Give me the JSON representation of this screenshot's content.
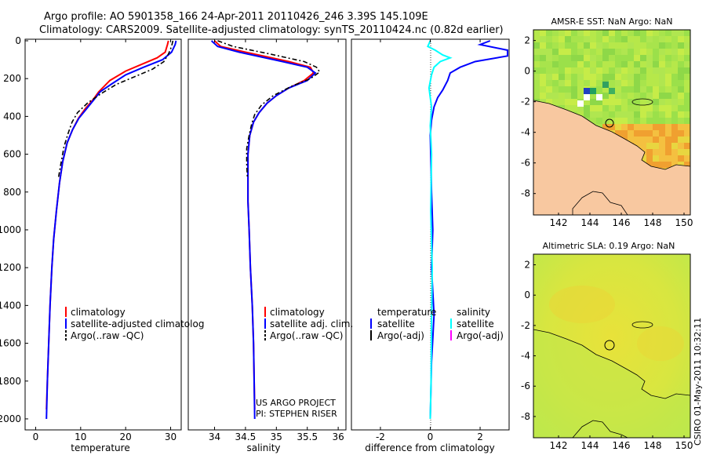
{
  "header": {
    "line1": "Argo profile: AO 5901358_166 24-Apr-2011 20110426_246 3.39S 145.109E",
    "line2": "Climatology: CARS2009. Satellite-adjusted climatology: synTS_20110424.nc (0.82d earlier)"
  },
  "credits": {
    "project": "US ARGO PROJECT",
    "pi": "PI: STEPHEN RISER"
  },
  "timestamp": "CSIRO 01-May-2011 10:32:11",
  "colors": {
    "clim": "#ff0000",
    "sat": "#0000ff",
    "argo": "#000000",
    "sal_sat": "#00ffff",
    "sal_argo": "#ff00ff",
    "land": "#f8c8a0"
  },
  "chart_data": [
    {
      "type": "line",
      "name": "temperature-profile",
      "xlabel": "temperature",
      "xlim": [
        -2,
        32
      ],
      "ylim": [
        2050,
        0
      ],
      "xticks": [
        0,
        10,
        20,
        30
      ],
      "yticks": [
        0,
        200,
        400,
        600,
        800,
        1000,
        1200,
        1400,
        1600,
        1800,
        2000
      ],
      "legend": [
        "climatology",
        "satellite-adjusted climatolog",
        "Argo(..raw -QC)"
      ],
      "series": [
        {
          "name": "climatology",
          "color": "#ff0000",
          "dash": "",
          "points": [
            [
              29.5,
              0
            ],
            [
              29.3,
              20
            ],
            [
              28.8,
              60
            ],
            [
              27,
              90
            ],
            [
              24,
              120
            ],
            [
              20,
              160
            ],
            [
              16.5,
              210
            ],
            [
              14,
              270
            ],
            [
              12.8,
              310
            ],
            [
              11,
              360
            ],
            [
              9.5,
              410
            ],
            [
              8.2,
              470
            ],
            [
              7,
              540
            ],
            [
              6,
              640
            ],
            [
              5.3,
              750
            ],
            [
              4.6,
              900
            ],
            [
              4.0,
              1050
            ],
            [
              3.6,
              1200
            ],
            [
              3.2,
              1400
            ],
            [
              2.9,
              1600
            ],
            [
              2.6,
              1800
            ],
            [
              2.4,
              1950
            ]
          ]
        },
        {
          "name": "satellite-adjusted climatology",
          "color": "#0000ff",
          "dash": "",
          "points": [
            [
              31.2,
              0
            ],
            [
              31,
              20
            ],
            [
              30.2,
              60
            ],
            [
              28.2,
              100
            ],
            [
              24,
              140
            ],
            [
              20,
              180
            ],
            [
              16.8,
              230
            ],
            [
              14.3,
              270
            ],
            [
              13,
              310
            ],
            [
              11.3,
              360
            ],
            [
              9.6,
              410
            ],
            [
              8.2,
              470
            ],
            [
              7,
              540
            ],
            [
              6,
              640
            ],
            [
              5.3,
              750
            ],
            [
              4.6,
              900
            ],
            [
              4.0,
              1050
            ],
            [
              3.6,
              1200
            ],
            [
              3.2,
              1400
            ],
            [
              2.9,
              1600
            ],
            [
              2.6,
              1800
            ],
            [
              2.4,
              2000
            ]
          ]
        },
        {
          "name": "Argo(..raw -QC)",
          "color": "#000000",
          "dash": "6,3,2,3",
          "points": [
            [
              30.5,
              0
            ],
            [
              30.2,
              30
            ],
            [
              29.5,
              70
            ],
            [
              28.5,
              110
            ],
            [
              26,
              150
            ],
            [
              22,
              190
            ],
            [
              18,
              230
            ],
            [
              14.5,
              280
            ],
            [
              11.5,
              330
            ],
            [
              9.3,
              380
            ],
            [
              8.1,
              430
            ],
            [
              7.2,
              490
            ],
            [
              6.3,
              560
            ],
            [
              5.6,
              650
            ],
            [
              5.1,
              720
            ]
          ]
        }
      ]
    },
    {
      "type": "line",
      "name": "salinity-profile",
      "xlabel": "salinity",
      "xlim": [
        33.6,
        36.1
      ],
      "ylim": [
        2050,
        0
      ],
      "xticks": [
        34,
        34.5,
        35,
        35.5,
        36
      ],
      "legend": [
        "climatology",
        "satellite adj. clim.",
        "Argo(..raw -QC)"
      ],
      "series": [
        {
          "name": "climatology",
          "color": "#ff0000",
          "dash": "",
          "points": [
            [
              34.0,
              0
            ],
            [
              34.1,
              30
            ],
            [
              34.5,
              60
            ],
            [
              35.2,
              110
            ],
            [
              35.55,
              140
            ],
            [
              35.6,
              170
            ],
            [
              35.45,
              210
            ],
            [
              35.2,
              250
            ],
            [
              35.0,
              290
            ],
            [
              34.85,
              330
            ],
            [
              34.72,
              380
            ],
            [
              34.63,
              430
            ],
            [
              34.57,
              500
            ],
            [
              34.54,
              600
            ],
            [
              34.54,
              700
            ],
            [
              34.54,
              850
            ],
            [
              34.56,
              1000
            ],
            [
              34.58,
              1200
            ],
            [
              34.61,
              1400
            ],
            [
              34.63,
              1600
            ],
            [
              34.64,
              1800
            ],
            [
              34.65,
              1950
            ]
          ]
        },
        {
          "name": "satellite adj. clim.",
          "color": "#0000ff",
          "dash": "",
          "points": [
            [
              33.95,
              0
            ],
            [
              34.05,
              30
            ],
            [
              34.4,
              60
            ],
            [
              35.1,
              110
            ],
            [
              35.5,
              140
            ],
            [
              35.63,
              170
            ],
            [
              35.5,
              210
            ],
            [
              35.2,
              250
            ],
            [
              35.0,
              290
            ],
            [
              34.85,
              330
            ],
            [
              34.72,
              380
            ],
            [
              34.63,
              430
            ],
            [
              34.57,
              500
            ],
            [
              34.54,
              600
            ],
            [
              34.54,
              700
            ],
            [
              34.54,
              850
            ],
            [
              34.56,
              1000
            ],
            [
              34.58,
              1200
            ],
            [
              34.61,
              1400
            ],
            [
              34.63,
              1600
            ],
            [
              34.64,
              1800
            ],
            [
              34.65,
              2000
            ]
          ]
        },
        {
          "name": "Argo(..raw -QC)",
          "color": "#000000",
          "dash": "6,3,2,3",
          "points": [
            [
              34.05,
              0
            ],
            [
              34.3,
              30
            ],
            [
              34.9,
              70
            ],
            [
              35.45,
              110
            ],
            [
              35.65,
              140
            ],
            [
              35.7,
              165
            ],
            [
              35.55,
              200
            ],
            [
              35.25,
              240
            ],
            [
              34.95,
              290
            ],
            [
              34.76,
              340
            ],
            [
              34.65,
              390
            ],
            [
              34.6,
              440
            ],
            [
              34.56,
              500
            ],
            [
              34.52,
              570
            ],
            [
              34.52,
              650
            ],
            [
              34.53,
              720
            ]
          ]
        }
      ]
    },
    {
      "type": "line",
      "name": "difference-profile",
      "xlabel": "difference from climatology",
      "xlim": [
        -3.1,
        3.1
      ],
      "ylim": [
        2050,
        0
      ],
      "xticks": [
        -2,
        0,
        2
      ],
      "legend_temperature": {
        "heading": "temperature",
        "items": [
          "satellite",
          "Argo(-adj)"
        ]
      },
      "legend_salinity": {
        "heading": "salinity",
        "items": [
          "satellite",
          "Argo(-adj)"
        ]
      },
      "series": [
        {
          "name": "temperature satellite",
          "color": "#0000ff",
          "dash": "",
          "points": [
            [
              2.4,
              0
            ],
            [
              2.0,
              20
            ],
            [
              3.1,
              50
            ],
            [
              3.1,
              80
            ],
            [
              1.8,
              110
            ],
            [
              1.2,
              140
            ],
            [
              0.8,
              170
            ],
            [
              0.7,
              210
            ],
            [
              0.5,
              260
            ],
            [
              0.3,
              300
            ],
            [
              0.15,
              350
            ],
            [
              0.05,
              420
            ],
            [
              0,
              500
            ],
            [
              0.02,
              600
            ],
            [
              0.05,
              800
            ],
            [
              0.1,
              1000
            ],
            [
              0.05,
              1200
            ],
            [
              0.15,
              1450
            ],
            [
              0.05,
              1700
            ],
            [
              0,
              2000
            ]
          ]
        },
        {
          "name": "salinity satellite",
          "color": "#00ffff",
          "dash": "",
          "points": [
            [
              0,
              0
            ],
            [
              -0.1,
              30
            ],
            [
              0.2,
              50
            ],
            [
              0.5,
              75
            ],
            [
              0.8,
              90
            ],
            [
              0.4,
              110
            ],
            [
              0.15,
              140
            ],
            [
              0.05,
              180
            ],
            [
              -0.05,
              250
            ],
            [
              0.05,
              350
            ],
            [
              0,
              450
            ],
            [
              0.05,
              600
            ],
            [
              0.02,
              900
            ],
            [
              0.08,
              1200
            ],
            [
              0.05,
              1500
            ],
            [
              0.03,
              1800
            ],
            [
              0,
              2000
            ]
          ]
        }
      ]
    },
    {
      "type": "heatmap",
      "name": "amsr-sst-map",
      "title": "AMSR-E SST: NaN Argo: NaN",
      "xlim": [
        140.4,
        150.4
      ],
      "ylim": [
        -9.4,
        2.7
      ],
      "xticks": [
        142,
        144,
        146,
        148,
        150
      ],
      "yticks": [
        2,
        0,
        -2,
        -4,
        -6,
        -8
      ],
      "float_position": [
        145.109,
        -3.39
      ]
    },
    {
      "type": "heatmap",
      "name": "altimetric-sla-map",
      "title": "Altimetric SLA: 0.19 Argo: NaN",
      "xlim": [
        140.4,
        150.4
      ],
      "ylim": [
        -9.4,
        2.7
      ],
      "xticks": [
        142,
        144,
        146,
        148,
        150
      ],
      "yticks": [
        2,
        0,
        -2,
        -4,
        -6,
        -8
      ],
      "float_position": [
        145.109,
        -3.39
      ]
    }
  ]
}
